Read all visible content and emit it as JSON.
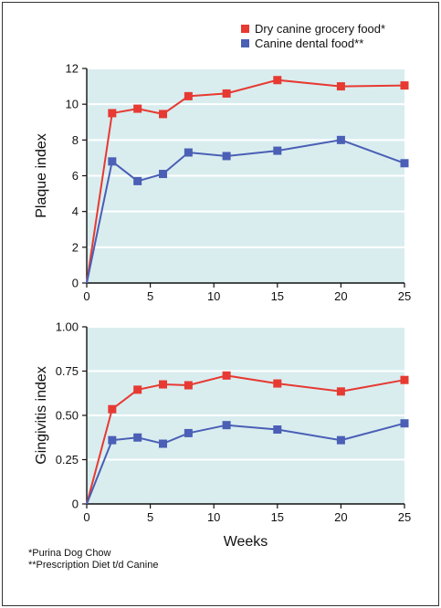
{
  "colors": {
    "series1": "#e63a32",
    "series2": "#4a5fb5",
    "plot_bg": "#d9edef",
    "grid": "#ffffff"
  },
  "legend": [
    {
      "label": "Dry canine grocery food*",
      "color": "#e63a32"
    },
    {
      "label": "Canine dental food**",
      "color": "#4a5fb5"
    }
  ],
  "footnotes": [
    "*Purina Dog Chow",
    "**Prescription Diet t/d Canine"
  ],
  "chart_data": [
    {
      "type": "line",
      "ylabel": "Plaque index",
      "xlabel": "",
      "xlim": [
        0,
        25
      ],
      "ylim": [
        0,
        12
      ],
      "xticks": [
        0,
        5,
        10,
        15,
        20,
        25
      ],
      "yticks": [
        0,
        2,
        4,
        6,
        8,
        10,
        12
      ],
      "ytick_labels": [
        "0",
        "2",
        "4",
        "6",
        "8",
        "10",
        "12"
      ],
      "grid": "horizontal",
      "legend_position": "top-right",
      "x": [
        0,
        2,
        4,
        6,
        8,
        11,
        15,
        20,
        25
      ],
      "series": [
        {
          "name": "Dry canine grocery food*",
          "color": "#e63a32",
          "values": [
            0,
            9.5,
            9.75,
            9.45,
            10.45,
            10.6,
            11.35,
            11.0,
            11.05
          ]
        },
        {
          "name": "Canine dental food**",
          "color": "#4a5fb5",
          "values": [
            0,
            6.8,
            5.7,
            6.1,
            7.3,
            7.1,
            7.4,
            8.0,
            6.7
          ]
        }
      ]
    },
    {
      "type": "line",
      "ylabel": "Gingivitis index",
      "xlabel": "Weeks",
      "xlim": [
        0,
        25
      ],
      "ylim": [
        0,
        1.0
      ],
      "xticks": [
        0,
        5,
        10,
        15,
        20,
        25
      ],
      "yticks": [
        0,
        0.25,
        0.5,
        0.75,
        1.0
      ],
      "ytick_labels": [
        "0",
        "0.25",
        "0.50",
        "0.75",
        "1.00"
      ],
      "grid": "horizontal",
      "x": [
        0,
        2,
        4,
        6,
        8,
        11,
        15,
        20,
        25
      ],
      "series": [
        {
          "name": "Dry canine grocery food*",
          "color": "#e63a32",
          "values": [
            0,
            0.535,
            0.645,
            0.675,
            0.67,
            0.725,
            0.68,
            0.635,
            0.7
          ]
        },
        {
          "name": "Canine dental food**",
          "color": "#4a5fb5",
          "values": [
            0,
            0.36,
            0.375,
            0.34,
            0.4,
            0.445,
            0.42,
            0.36,
            0.455
          ]
        }
      ]
    }
  ]
}
